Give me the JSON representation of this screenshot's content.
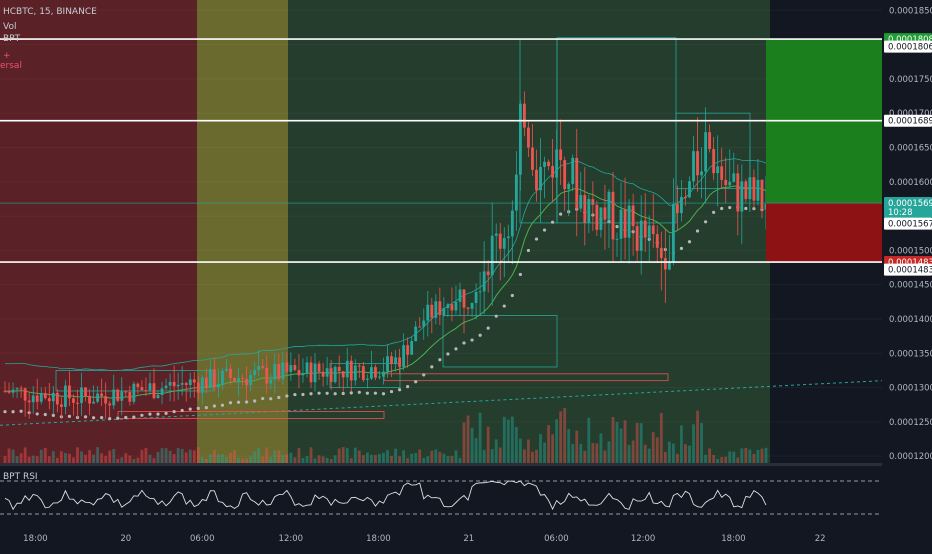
{
  "header": {
    "symbol_line": "HCBTC, 15, BINANCE",
    "vol_label": "Vol",
    "bpt_label": "BPT",
    "plus_marker": "+",
    "reversal_label": "ersal"
  },
  "rsi": {
    "label": "BPT RSI",
    "level_high": "80.0000000",
    "level_low": "40.0000000"
  },
  "price_axis": {
    "ticks": [
      "0.0001850",
      "0.0001800",
      "0.0001750",
      "0.0001700",
      "0.0001650",
      "0.0001600",
      "0.0001550",
      "0.0001500",
      "0.0001450",
      "0.0001400",
      "0.0001350",
      "0.0001300",
      "0.0001250",
      "0.0001200"
    ],
    "tags": [
      {
        "text": "0.0001808",
        "bg": "#1f9d33",
        "fg": "#ffffff",
        "price": 0.0001808
      },
      {
        "text": "0.0001806",
        "bg": "#ffffff",
        "fg": "#131722",
        "price": 0.0001797
      },
      {
        "text": "0.0001689",
        "bg": "#ffffff",
        "fg": "#131722",
        "price": 0.0001689
      },
      {
        "text": "0.0001569",
        "bg": "#26a69a",
        "fg": "#ffffff",
        "price": 0.0001569
      },
      {
        "text": "10:28",
        "bg": "#26a69a",
        "fg": "#ffffff",
        "price": 0.0001556
      },
      {
        "text": "0.0001567",
        "bg": "#ffffff",
        "fg": "#131722",
        "price": 0.0001539
      },
      {
        "text": "0.0001483",
        "bg": "#c62828",
        "fg": "#ffffff",
        "price": 0.0001483
      },
      {
        "text": "0.0001483",
        "bg": "#ffffff",
        "fg": "#131722",
        "price": 0.0001472
      }
    ]
  },
  "time_axis": {
    "labels": [
      {
        "text": "18:00",
        "pos": 0.038
      },
      {
        "text": "20",
        "pos": 0.135
      },
      {
        "text": "06:00",
        "pos": 0.217
      },
      {
        "text": "12:00",
        "pos": 0.312
      },
      {
        "text": "18:00",
        "pos": 0.406
      },
      {
        "text": "21",
        "pos": 0.503
      },
      {
        "text": "06:00",
        "pos": 0.597
      },
      {
        "text": "12:00",
        "pos": 0.69
      },
      {
        "text": "18:00",
        "pos": 0.787
      },
      {
        "text": "22",
        "pos": 0.88
      }
    ]
  },
  "colors": {
    "zone_red": "#5a2126",
    "zone_olive": "#6b6a2e",
    "zone_green": "#243d2c",
    "candle_up": "#26a69a",
    "candle_down": "#ef5350",
    "target_green": "#1b7f1e",
    "stop_red": "#8c1214"
  },
  "chart_data": {
    "type": "candlestick",
    "title": "HCBTC, 15, BINANCE",
    "ylim": [
      0.000119,
      0.0001865
    ],
    "horizontal_levels": [
      0.0001808,
      0.0001689,
      0.0001483
    ],
    "current_price": 0.0001569,
    "trade_box": {
      "entry": 0.0001569,
      "target": 0.0001808,
      "stop": 0.0001483
    },
    "sample_close_path": [
      [
        0.0,
        0.0001295
      ],
      [
        0.1,
        0.0001285
      ],
      [
        0.2,
        0.00013
      ],
      [
        0.3,
        0.0001315
      ],
      [
        0.42,
        0.0001325
      ],
      [
        0.5,
        0.000133
      ],
      [
        0.52,
        0.0001345
      ],
      [
        0.55,
        0.00014
      ],
      [
        0.6,
        0.000144
      ],
      [
        0.64,
        0.00015
      ],
      [
        0.67,
        0.000156
      ],
      [
        0.68,
        0.000172
      ],
      [
        0.7,
        0.000161
      ],
      [
        0.73,
        0.000164
      ],
      [
        0.76,
        0.000157
      ],
      [
        0.8,
        0.0001545
      ],
      [
        0.84,
        0.000152
      ],
      [
        0.86,
        0.000149
      ],
      [
        0.89,
        0.000156
      ],
      [
        0.92,
        0.000166
      ],
      [
        0.95,
        0.000159
      ],
      [
        1.0,
        0.0001569
      ]
    ]
  }
}
